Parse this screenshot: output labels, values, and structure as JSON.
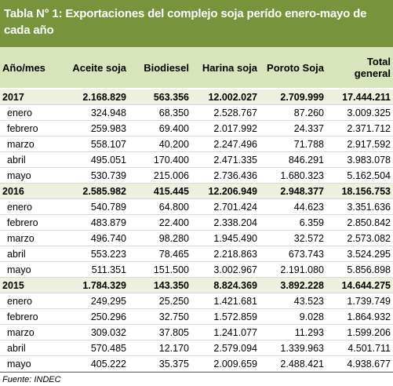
{
  "header": {
    "title": "Tabla N° 1: Exportaciones del complejo soja perído enero-mayo de cada año"
  },
  "table": {
    "columns": [
      "Año/mes",
      "Aceite soja",
      "Biodiesel",
      "Harina soja",
      "Poroto Soja",
      "Total general"
    ],
    "groups": [
      {
        "year": "2017",
        "totals": [
          "2.168.829",
          "563.356",
          "12.002.027",
          "2.709.999",
          "17.444.211"
        ],
        "rows": [
          {
            "month": "enero",
            "values": [
              "324.948",
              "68.350",
              "2.528.767",
              "87.260",
              "3.009.325"
            ]
          },
          {
            "month": "febrero",
            "values": [
              "259.983",
              "69.400",
              "2.017.992",
              "24.337",
              "2.371.712"
            ]
          },
          {
            "month": "marzo",
            "values": [
              "558.107",
              "40.200",
              "2.247.496",
              "71.788",
              "2.917.592"
            ]
          },
          {
            "month": "abril",
            "values": [
              "495.051",
              "170.400",
              "2.471.335",
              "846.291",
              "3.983.078"
            ]
          },
          {
            "month": "mayo",
            "values": [
              "530.739",
              "215.006",
              "2.736.436",
              "1.680.323",
              "5.162.504"
            ]
          }
        ]
      },
      {
        "year": "2016",
        "totals": [
          "2.585.982",
          "415.445",
          "12.206.949",
          "2.948.377",
          "18.156.753"
        ],
        "rows": [
          {
            "month": "enero",
            "values": [
              "540.789",
              "64.800",
              "2.701.424",
              "44.623",
              "3.351.636"
            ]
          },
          {
            "month": "febrero",
            "values": [
              "483.879",
              "22.400",
              "2.338.204",
              "6.359",
              "2.850.842"
            ]
          },
          {
            "month": "marzo",
            "values": [
              "496.740",
              "98.280",
              "1.945.490",
              "32.572",
              "2.573.082"
            ]
          },
          {
            "month": "abril",
            "values": [
              "553.223",
              "78.465",
              "2.218.863",
              "673.743",
              "3.524.295"
            ]
          },
          {
            "month": "mayo",
            "values": [
              "511.351",
              "151.500",
              "3.002.967",
              "2.191.080",
              "5.856.898"
            ]
          }
        ]
      },
      {
        "year": "2015",
        "totals": [
          "1.784.329",
          "143.350",
          "8.824.369",
          "3.892.228",
          "14.644.275"
        ],
        "rows": [
          {
            "month": "enero",
            "values": [
              "249.295",
              "25.250",
              "1.421.681",
              "43.523",
              "1.739.749"
            ]
          },
          {
            "month": "febrero",
            "values": [
              "250.296",
              "32.750",
              "1.572.859",
              "9.028",
              "1.864.932"
            ]
          },
          {
            "month": "marzo",
            "values": [
              "309.032",
              "37.805",
              "1.241.077",
              "11.293",
              "1.599.206"
            ]
          },
          {
            "month": "abril",
            "values": [
              "570.485",
              "12.170",
              "2.579.094",
              "1.339.963",
              "4.501.711"
            ]
          },
          {
            "month": "mayo",
            "values": [
              "405.222",
              "35.375",
              "2.009.659",
              "2.488.421",
              "4.938.677"
            ]
          }
        ]
      }
    ]
  },
  "footer": {
    "source": "Fuente: INDEC"
  }
}
